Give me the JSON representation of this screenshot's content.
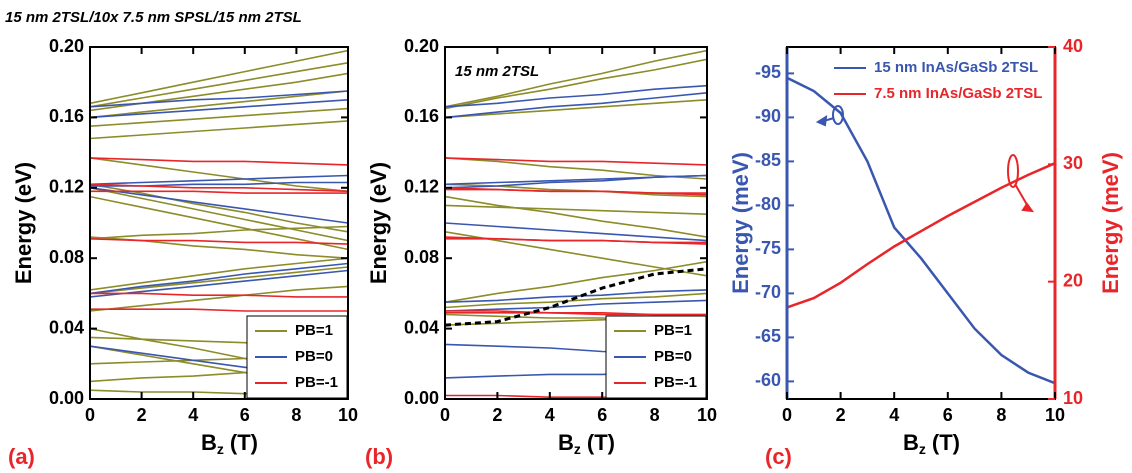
{
  "chart_data": [
    {
      "type": "line",
      "title": "15 nm 2TSL/10x 7.5 nm SPSL/15 nm 2TSL",
      "panel_label": "(a)",
      "xlabel": [
        "B",
        "z",
        "(T)"
      ],
      "ylabel": "Energy (eV)",
      "x": [
        0,
        2,
        4,
        6,
        8,
        10
      ],
      "xlim": [
        0,
        10
      ],
      "xticks": [
        0,
        2,
        4,
        6,
        8,
        10
      ],
      "ylim": [
        0,
        0.2
      ],
      "yticks": [
        {
          "value": 0,
          "label": "0.00"
        },
        {
          "value": 0.04,
          "label": "0.04"
        },
        {
          "value": 0.08,
          "label": "0.08"
        },
        {
          "value": 0.12,
          "label": "0.12"
        },
        {
          "value": 0.16,
          "label": "0.16"
        },
        {
          "value": 0.2,
          "label": "0.20"
        }
      ],
      "legend": "lower right",
      "series": [
        {
          "name": "PB=1",
          "color": "#8c8c2a",
          "values": [
            [
              0.168,
              0.174,
              0.18,
              0.186,
              0.192,
              0.198
            ],
            [
              0.166,
              0.171,
              0.176,
              0.181,
              0.186,
              0.191
            ],
            [
              0.164,
              0.168,
              0.172,
              0.176,
              0.18,
              0.185
            ],
            [
              0.16,
              0.163,
              0.166,
              0.169,
              0.172,
              0.175
            ],
            [
              0.155,
              0.157,
              0.159,
              0.161,
              0.163,
              0.165
            ],
            [
              0.148,
              0.15,
              0.152,
              0.154,
              0.156,
              0.158
            ],
            [
              0.137,
              0.133,
              0.129,
              0.125,
              0.121,
              0.118
            ],
            [
              0.122,
              0.117,
              0.111,
              0.106,
              0.1,
              0.095
            ],
            [
              0.12,
              0.114,
              0.108,
              0.102,
              0.096,
              0.09
            ],
            [
              0.115,
              0.109,
              0.103,
              0.097,
              0.091,
              0.085
            ],
            [
              0.092,
              0.09,
              0.087,
              0.085,
              0.082,
              0.08
            ],
            [
              0.091,
              0.093,
              0.094,
              0.096,
              0.097,
              0.098
            ],
            [
              0.062,
              0.066,
              0.07,
              0.074,
              0.077,
              0.08
            ],
            [
              0.06,
              0.063,
              0.066,
              0.069,
              0.072,
              0.075
            ],
            [
              0.05,
              0.053,
              0.056,
              0.059,
              0.062,
              0.064
            ],
            [
              0.04,
              0.034,
              0.029,
              0.023,
              0.018,
              0.012
            ],
            [
              0.035,
              0.034,
              0.033,
              0.032,
              0.031,
              0.03
            ],
            [
              0.03,
              0.025,
              0.02,
              0.015,
              0.01,
              0.005
            ],
            [
              0.02,
              0.021,
              0.022,
              0.023,
              0.024,
              0.025
            ],
            [
              0.01,
              0.012,
              0.013,
              0.015,
              0.016,
              0.018
            ],
            [
              0.005,
              0.004,
              0.004,
              0.003,
              0.003,
              0.002
            ]
          ]
        },
        {
          "name": "PB=0",
          "color": "#3a57b0",
          "values": [
            [
              0.166,
              0.168,
              0.17,
              0.171,
              0.173,
              0.175
            ],
            [
              0.16,
              0.162,
              0.164,
              0.166,
              0.168,
              0.17
            ],
            [
              0.122,
              0.123,
              0.124,
              0.125,
              0.126,
              0.127
            ],
            [
              0.121,
              0.121,
              0.122,
              0.122,
              0.123,
              0.123
            ],
            [
              0.12,
              0.116,
              0.112,
              0.108,
              0.104,
              0.1
            ],
            [
              0.06,
              0.064,
              0.067,
              0.071,
              0.074,
              0.077
            ],
            [
              0.058,
              0.061,
              0.064,
              0.067,
              0.07,
              0.073
            ],
            [
              0.03,
              0.026,
              0.022,
              0.018,
              0.014,
              0.01
            ]
          ]
        },
        {
          "name": "PB=-1",
          "color": "#e8262a",
          "values": [
            [
              0.137,
              0.136,
              0.135,
              0.135,
              0.134,
              0.133
            ],
            [
              0.122,
              0.121,
              0.12,
              0.12,
              0.119,
              0.118
            ],
            [
              0.118,
              0.118,
              0.118,
              0.117,
              0.117,
              0.117
            ],
            [
              0.091,
              0.09,
              0.09,
              0.089,
              0.089,
              0.088
            ],
            [
              0.06,
              0.06,
              0.059,
              0.059,
              0.058,
              0.058
            ],
            [
              0.051,
              0.051,
              0.051,
              0.05,
              0.05,
              0.05
            ]
          ]
        }
      ]
    },
    {
      "type": "line",
      "title": "15 nm 2TSL",
      "panel_label": "(b)",
      "xlabel": [
        "B",
        "z",
        "(T)"
      ],
      "ylabel": "Energy (eV)",
      "x": [
        0,
        2,
        4,
        6,
        8,
        10
      ],
      "xlim": [
        0,
        10
      ],
      "xticks": [
        0,
        2,
        4,
        6,
        8,
        10
      ],
      "ylim": [
        0,
        0.2
      ],
      "yticks": [
        {
          "value": 0,
          "label": "0.00"
        },
        {
          "value": 0.04,
          "label": "0.04"
        },
        {
          "value": 0.08,
          "label": "0.08"
        },
        {
          "value": 0.12,
          "label": "0.12"
        },
        {
          "value": 0.16,
          "label": "0.16"
        },
        {
          "value": 0.2,
          "label": "0.20"
        }
      ],
      "legend": "lower right",
      "series": [
        {
          "name": "PB=1",
          "color": "#8c8c2a",
          "values": [
            [
              0.166,
              0.172,
              0.179,
              0.185,
              0.192,
              0.198
            ],
            [
              0.165,
              0.171,
              0.176,
              0.182,
              0.187,
              0.193
            ],
            [
              0.16,
              0.162,
              0.164,
              0.166,
              0.168,
              0.17
            ],
            [
              0.137,
              0.135,
              0.132,
              0.13,
              0.127,
              0.125
            ],
            [
              0.122,
              0.121,
              0.119,
              0.118,
              0.116,
              0.115
            ],
            [
              0.115,
              0.11,
              0.106,
              0.101,
              0.097,
              0.092
            ],
            [
              0.11,
              0.109,
              0.108,
              0.107,
              0.106,
              0.105
            ],
            [
              0.095,
              0.09,
              0.085,
              0.08,
              0.075,
              0.07
            ],
            [
              0.055,
              0.06,
              0.064,
              0.069,
              0.073,
              0.078
            ],
            [
              0.052,
              0.054,
              0.055,
              0.057,
              0.058,
              0.06
            ],
            [
              0.048,
              0.047,
              0.046,
              0.046,
              0.045,
              0.044
            ],
            [
              0.042,
              0.043,
              0.044,
              0.045,
              0.046,
              0.047
            ]
          ]
        },
        {
          "name": "PB=0",
          "color": "#3a57b0",
          "values": [
            [
              0.166,
              0.168,
              0.171,
              0.173,
              0.176,
              0.178
            ],
            [
              0.16,
              0.163,
              0.166,
              0.168,
              0.171,
              0.174
            ],
            [
              0.122,
              0.123,
              0.124,
              0.125,
              0.126,
              0.127
            ],
            [
              0.12,
              0.121,
              0.123,
              0.124,
              0.126,
              0.127
            ],
            [
              0.1,
              0.098,
              0.096,
              0.094,
              0.092,
              0.09
            ],
            [
              0.055,
              0.056,
              0.058,
              0.059,
              0.061,
              0.062
            ],
            [
              0.05,
              0.051,
              0.052,
              0.054,
              0.055,
              0.056
            ],
            [
              0.031,
              0.03,
              0.029,
              0.027,
              0.026,
              0.025
            ],
            [
              0.012,
              0.013,
              0.014,
              0.014,
              0.015,
              0.016
            ]
          ]
        },
        {
          "name": "PB=-1",
          "color": "#e8262a",
          "values": [
            [
              0.137,
              0.136,
              0.135,
              0.135,
              0.134,
              0.133
            ],
            [
              0.12,
              0.119,
              0.118,
              0.118,
              0.117,
              0.116
            ],
            [
              0.119,
              0.119,
              0.118,
              0.118,
              0.117,
              0.117
            ],
            [
              0.092,
              0.091,
              0.09,
              0.09,
              0.089,
              0.088
            ],
            [
              0.091,
              0.091,
              0.09,
              0.09,
              0.089,
              0.089
            ],
            [
              0.05,
              0.05,
              0.049,
              0.049,
              0.048,
              0.048
            ],
            [
              0.049,
              0.049,
              0.049,
              0.048,
              0.048,
              0.048
            ],
            [
              0.002,
              0.002,
              0.001,
              0.001,
              0.0,
              0.0
            ]
          ]
        },
        {
          "color": "#000000",
          "dash": true,
          "values": [
            [
              0.042,
              0.044,
              0.052,
              0.063,
              0.071,
              0.074
            ]
          ]
        }
      ]
    },
    {
      "type": "line",
      "panel_label": "(c)",
      "xlabel": [
        "B",
        "z",
        "(T)"
      ],
      "ylabel": "Energy (meV)",
      "y2label": "Energy (meV)",
      "x": [
        0,
        1,
        2,
        3,
        4,
        5,
        6,
        7,
        8,
        9,
        10
      ],
      "xlim": [
        0,
        10
      ],
      "xticks": [
        0,
        2,
        4,
        6,
        8,
        10
      ],
      "ylim": [
        -58,
        -98
      ],
      "yticks": [
        -95,
        -90,
        -85,
        -80,
        -75,
        -70,
        -65,
        -60
      ],
      "y2lim": [
        10,
        40
      ],
      "y2ticks": [
        10,
        20,
        30,
        40
      ],
      "legend": "upper right",
      "series": [
        {
          "name": "15 nm InAs/GaSb 2TSL",
          "color": "#3a57b0",
          "values": [
            -94.5,
            -93,
            -90.5,
            -85,
            -77.5,
            -74,
            -70,
            -66,
            -63,
            -61,
            -59.8
          ]
        },
        {
          "name": "7.5 nm InAs/GaSb 2TSL",
          "color": "#e8262a",
          "axis": "y2",
          "values": [
            17.8,
            18.6,
            19.9,
            21.5,
            23.0,
            24.3,
            25.6,
            26.8,
            28.0,
            29.1,
            30.1
          ]
        }
      ]
    }
  ]
}
